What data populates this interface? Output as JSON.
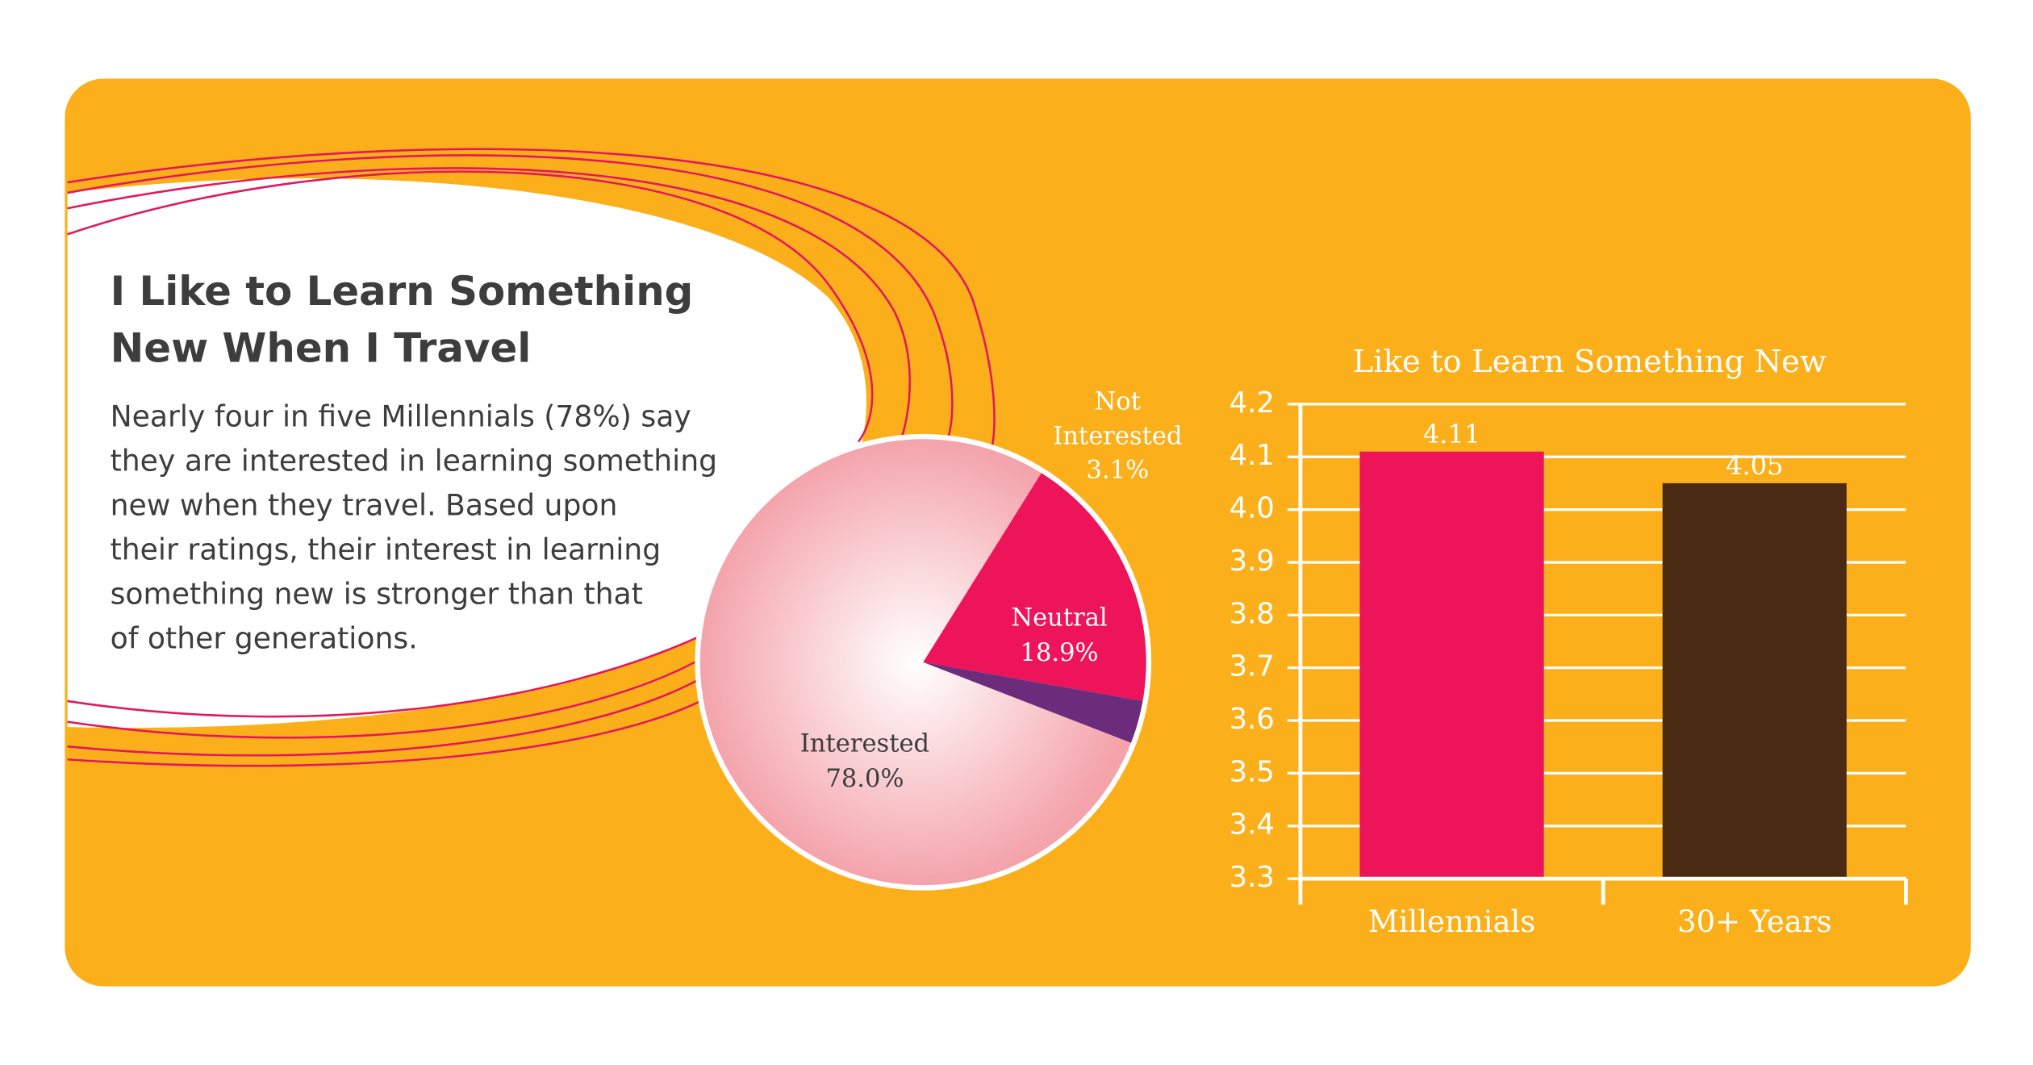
{
  "panel": {
    "title_lines": [
      "I Like to Learn Something",
      "New When I Travel"
    ],
    "body_lines": [
      "Nearly four in five Millennials (78%) say",
      "they are interested in learning something",
      "new when they travel. Based upon",
      "their ratings, their interest in learning",
      "something new is stronger than that",
      "of other generations."
    ]
  },
  "chart_data": [
    {
      "type": "pie",
      "categories": [
        "Interested",
        "Neutral",
        "Not Interested"
      ],
      "values": [
        78.0,
        18.9,
        3.1
      ],
      "value_labels": [
        "78.0%",
        "18.9%",
        "3.1%"
      ],
      "colors": [
        "#f4a3ab",
        "#ed1459",
        "#6b2c7c"
      ]
    },
    {
      "type": "bar",
      "title": "Like to Learn Something New",
      "categories": [
        "Millennials",
        "30+ Years"
      ],
      "values": [
        4.11,
        4.05
      ],
      "colors": [
        "#ed1459",
        "#4b2a14"
      ],
      "ylim": [
        3.3,
        4.2
      ],
      "yticks": [
        3.3,
        3.4,
        3.5,
        3.6,
        3.7,
        3.8,
        3.9,
        {
          "value": 4,
          "label": "4.0"
        },
        4.1,
        4.2
      ],
      "grid": true
    }
  ]
}
